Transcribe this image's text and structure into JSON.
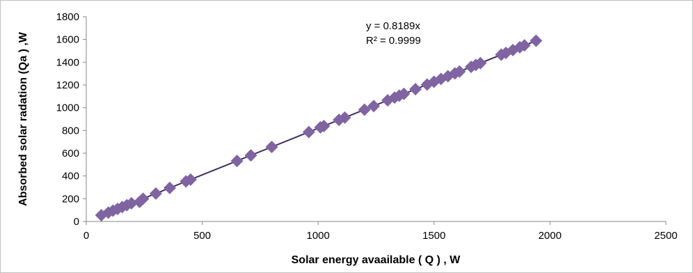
{
  "chart_data": {
    "type": "scatter",
    "xlabel": "Solar energy avaailable ( Q ) , W",
    "ylabel": "Absorbed solar radation (Qa ) ,W",
    "xlim": [
      0,
      2500
    ],
    "ylim": [
      0,
      1800
    ],
    "xticks": [
      "0",
      "500",
      "1000",
      "1500",
      "2000",
      "2500"
    ],
    "yticks": [
      "0",
      "200",
      "400",
      "600",
      "800",
      "1000",
      "1200",
      "1400",
      "1600",
      "1800"
    ],
    "grid": false,
    "marker": "diamond",
    "marker_color": "#8064a2",
    "trendline_color": "#3b2d5e",
    "equation": "y = 0.8189x",
    "r_squared": "R² = 0.9999",
    "trendline_slope": 0.8189,
    "points": [
      {
        "x": 65,
        "y": 55
      },
      {
        "x": 95,
        "y": 78
      },
      {
        "x": 115,
        "y": 95
      },
      {
        "x": 135,
        "y": 110
      },
      {
        "x": 155,
        "y": 127
      },
      {
        "x": 175,
        "y": 143
      },
      {
        "x": 195,
        "y": 160
      },
      {
        "x": 230,
        "y": 172
      },
      {
        "x": 245,
        "y": 200
      },
      {
        "x": 300,
        "y": 246
      },
      {
        "x": 360,
        "y": 295
      },
      {
        "x": 430,
        "y": 352
      },
      {
        "x": 450,
        "y": 368
      },
      {
        "x": 650,
        "y": 532
      },
      {
        "x": 710,
        "y": 581
      },
      {
        "x": 800,
        "y": 655
      },
      {
        "x": 960,
        "y": 786
      },
      {
        "x": 1010,
        "y": 827
      },
      {
        "x": 1025,
        "y": 839
      },
      {
        "x": 1090,
        "y": 893
      },
      {
        "x": 1115,
        "y": 913
      },
      {
        "x": 1200,
        "y": 983
      },
      {
        "x": 1240,
        "y": 1015
      },
      {
        "x": 1300,
        "y": 1065
      },
      {
        "x": 1330,
        "y": 1089
      },
      {
        "x": 1350,
        "y": 1106
      },
      {
        "x": 1370,
        "y": 1122
      },
      {
        "x": 1420,
        "y": 1163
      },
      {
        "x": 1470,
        "y": 1204
      },
      {
        "x": 1500,
        "y": 1228
      },
      {
        "x": 1530,
        "y": 1253
      },
      {
        "x": 1560,
        "y": 1277
      },
      {
        "x": 1590,
        "y": 1302
      },
      {
        "x": 1610,
        "y": 1318
      },
      {
        "x": 1660,
        "y": 1359
      },
      {
        "x": 1680,
        "y": 1376
      },
      {
        "x": 1700,
        "y": 1392
      },
      {
        "x": 1790,
        "y": 1466
      },
      {
        "x": 1810,
        "y": 1482
      },
      {
        "x": 1840,
        "y": 1507
      },
      {
        "x": 1870,
        "y": 1531
      },
      {
        "x": 1890,
        "y": 1548
      },
      {
        "x": 1940,
        "y": 1589
      }
    ]
  }
}
